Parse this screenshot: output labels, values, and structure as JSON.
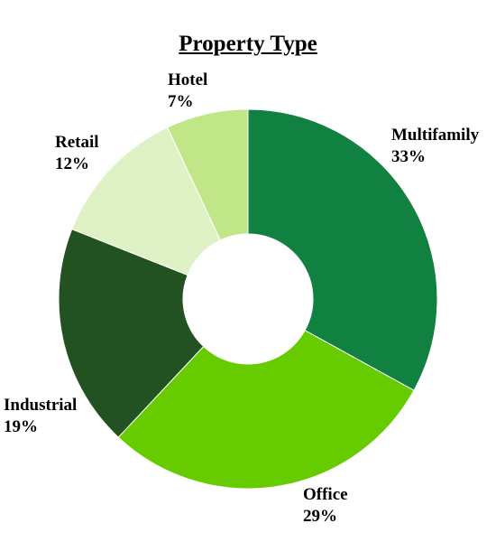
{
  "chart_data": {
    "type": "pie",
    "variant": "donut",
    "title": "Property Type",
    "categories": [
      "Multifamily",
      "Office",
      "Industrial",
      "Retail",
      "Hotel"
    ],
    "values": [
      33,
      29,
      19,
      12,
      7
    ],
    "value_labels": [
      "33%",
      "29%",
      "19%",
      "12%",
      "7%"
    ],
    "colors": [
      "#118142",
      "#66cc00",
      "#225222",
      "#dff2c5",
      "#c0e688"
    ],
    "legend": "none",
    "start": "top",
    "direction": "clockwise"
  }
}
